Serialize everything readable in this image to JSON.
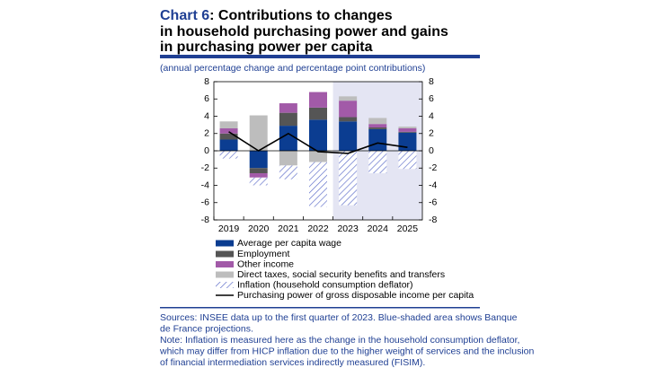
{
  "chart_data": {
    "type": "bar",
    "stacked": true,
    "chart_label": "Chart 6",
    "title_lines": [
      ": Contributions to changes",
      "in household purchasing power and gains",
      "in purchasing power per capita"
    ],
    "subtitle": "(annual percentage change and percentage point contributions)",
    "categories": [
      "2019",
      "2020",
      "2021",
      "2022",
      "2023",
      "2024",
      "2025"
    ],
    "series": [
      {
        "name": "Average per capita wage",
        "color": "#0b3d91",
        "values": [
          1.3,
          -2.0,
          2.9,
          3.6,
          3.4,
          2.5,
          2.1
        ]
      },
      {
        "name": "Employment",
        "color": "#555555",
        "values": [
          0.7,
          -0.6,
          1.5,
          1.4,
          0.5,
          0.2,
          0.1
        ]
      },
      {
        "name": "Other income",
        "color": "#a25aa8",
        "values": [
          0.6,
          -0.5,
          1.1,
          1.8,
          1.9,
          0.4,
          0.4
        ]
      },
      {
        "name": "Direct taxes, social security benefits and transfers",
        "color": "#bdbdbd",
        "values": [
          0.8,
          4.1,
          -1.7,
          -1.3,
          0.5,
          0.7,
          0.2
        ]
      },
      {
        "name": "Inflation (household consumption deflator)",
        "color": "#5a6ac8",
        "hatched": true,
        "values": [
          -0.9,
          -0.9,
          -1.6,
          -5.2,
          -6.3,
          -2.6,
          -2.1
        ]
      },
      {
        "name": "Purchasing power of gross disposable income per capita",
        "type": "line",
        "color": "#000000",
        "values": [
          2.2,
          0.0,
          2.0,
          -0.1,
          -0.3,
          0.9,
          0.4
        ]
      }
    ],
    "ylim": [
      -8,
      8
    ],
    "yticks": [
      -8,
      -6,
      -4,
      -2,
      0,
      2,
      4,
      6,
      8
    ],
    "y2lim": [
      -8,
      8
    ],
    "y2ticks": [
      -8,
      -6,
      -4,
      -2,
      0,
      2,
      4,
      6,
      8
    ],
    "shaded_region": {
      "from": "2023",
      "to": "2025",
      "color": "#e4e5f3"
    },
    "notes": [
      "Sources: INSEE data up to the first quarter of 2023. Blue-shaded area shows Banque",
      "de France projections.",
      "Note: Inflation is measured here as the change in the household consumption deflator,",
      "which may differ from HICP inflation due to the higher weight of services and the inclusion",
      "of financial intermediation services indirectly measured (FISIM)."
    ]
  }
}
